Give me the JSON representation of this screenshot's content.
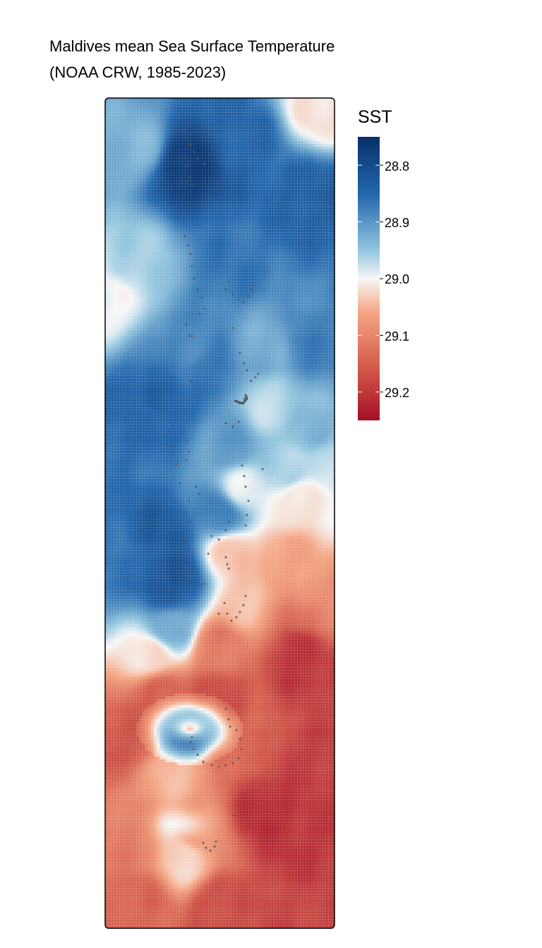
{
  "title": {
    "line1": "Maldives mean Sea Surface Temperature",
    "line2": "(NOAA CRW, 1985-2023)"
  },
  "legend": {
    "title": "SST",
    "ticks": [
      "28.8",
      "28.9",
      "29.0",
      "29.1",
      "29.2"
    ]
  },
  "colors": {
    "scale_low": "#08306b",
    "scale_mid": "#f7f7f7",
    "scale_high": "#a50f26",
    "islands": "#555555",
    "frame": "#000000"
  },
  "chart_data": {
    "type": "heatmap",
    "title": "Maldives mean Sea Surface Temperature (NOAA CRW, 1985-2023)",
    "xlabel": "",
    "ylabel": "",
    "legend_title": "SST",
    "colorbar_ticks": [
      28.8,
      28.9,
      29.0,
      29.1,
      29.2
    ],
    "value_range": [
      28.75,
      29.25
    ],
    "grid_columns": 80,
    "grid_rows": 290,
    "zones": [
      {
        "rows": "north (top ~60%)",
        "mean_sst": 28.85,
        "note": "mostly blue, darkest near northern atolls"
      },
      {
        "rows": "central transition",
        "mean_sst": 29.02,
        "note": "white to light orange band"
      },
      {
        "rows": "south (bottom ~40%)",
        "mean_sst": 29.18,
        "note": "mostly red, with a cool whitish-blue ring near the southern atoll"
      }
    ],
    "anchor_values": [
      {
        "x": 0.35,
        "y": 0.08,
        "v": 28.76
      },
      {
        "x": 0.15,
        "y": 0.06,
        "v": 28.93
      },
      {
        "x": 0.6,
        "y": 0.05,
        "v": 28.84
      },
      {
        "x": 0.95,
        "y": 0.01,
        "v": 29.02
      },
      {
        "x": 0.92,
        "y": 0.12,
        "v": 28.83
      },
      {
        "x": 0.12,
        "y": 0.2,
        "v": 28.96
      },
      {
        "x": 0.02,
        "y": 0.24,
        "v": 29.0
      },
      {
        "x": 0.55,
        "y": 0.2,
        "v": 28.86
      },
      {
        "x": 0.35,
        "y": 0.3,
        "v": 28.88
      },
      {
        "x": 0.9,
        "y": 0.3,
        "v": 28.87
      },
      {
        "x": 0.7,
        "y": 0.3,
        "v": 28.92
      },
      {
        "x": 0.2,
        "y": 0.38,
        "v": 28.85
      },
      {
        "x": 0.45,
        "y": 0.33,
        "v": 28.86
      },
      {
        "x": 0.72,
        "y": 0.37,
        "v": 28.97
      },
      {
        "x": 0.9,
        "y": 0.4,
        "v": 28.93
      },
      {
        "x": 0.22,
        "y": 0.37,
        "v": 28.82
      },
      {
        "x": 0.55,
        "y": 0.42,
        "v": 28.9
      },
      {
        "x": 0.8,
        "y": 0.45,
        "v": 28.96
      },
      {
        "x": 0.97,
        "y": 0.44,
        "v": 28.97
      },
      {
        "x": 0.6,
        "y": 0.47,
        "v": 28.99
      },
      {
        "x": 0.85,
        "y": 0.48,
        "v": 29.02
      },
      {
        "x": 0.25,
        "y": 0.52,
        "v": 28.82
      },
      {
        "x": 0.5,
        "y": 0.5,
        "v": 28.87
      },
      {
        "x": 0.3,
        "y": 0.58,
        "v": 28.8
      },
      {
        "x": 0.05,
        "y": 0.56,
        "v": 28.86
      },
      {
        "x": 0.55,
        "y": 0.55,
        "v": 29.04
      },
      {
        "x": 0.78,
        "y": 0.56,
        "v": 29.07
      },
      {
        "x": 0.6,
        "y": 0.61,
        "v": 29.04
      },
      {
        "x": 0.9,
        "y": 0.61,
        "v": 29.09
      },
      {
        "x": 0.28,
        "y": 0.64,
        "v": 28.92
      },
      {
        "x": 0.28,
        "y": 0.585,
        "v": 28.82
      }
    ]
  }
}
